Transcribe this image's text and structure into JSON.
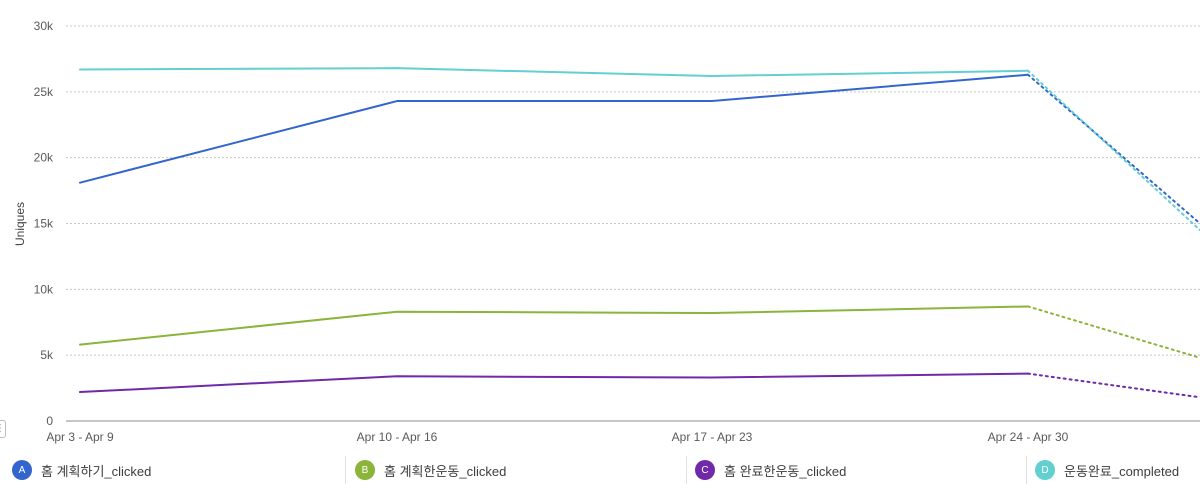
{
  "chart_data": {
    "type": "line",
    "xlabel": "",
    "ylabel": "Uniques",
    "ylim": [
      0,
      30000
    ],
    "y_ticks": [
      "0",
      "5k",
      "10k",
      "15k",
      "20k",
      "25k",
      "30k"
    ],
    "y_tick_values": [
      0,
      5000,
      10000,
      15000,
      20000,
      25000,
      30000
    ],
    "categories": [
      "Apr 3 - Apr 9",
      "Apr 10 - Apr 16",
      "Apr 17 - Apr 23",
      "Apr 24 - Apr 30",
      ""
    ],
    "incomplete_last_period": true,
    "grid": true,
    "legend_position": "bottom",
    "series": [
      {
        "key": "A",
        "name": "홈 계획하기_clicked",
        "color": "#3366cc",
        "values": [
          18100,
          24300,
          24300,
          26300,
          15000
        ]
      },
      {
        "key": "B",
        "name": "홈 계획한운동_clicked",
        "color": "#8ab43a",
        "values": [
          5800,
          8300,
          8200,
          8700,
          4800
        ]
      },
      {
        "key": "C",
        "name": "홈 완료한운동_clicked",
        "color": "#7029a8",
        "values": [
          2200,
          3400,
          3300,
          3600,
          1800
        ]
      },
      {
        "key": "D",
        "name": "운동완료_completed",
        "color": "#62cfd0",
        "values": [
          26700,
          26800,
          26200,
          26600,
          14500
        ]
      }
    ]
  },
  "resize_handle_glyph": "⋮"
}
